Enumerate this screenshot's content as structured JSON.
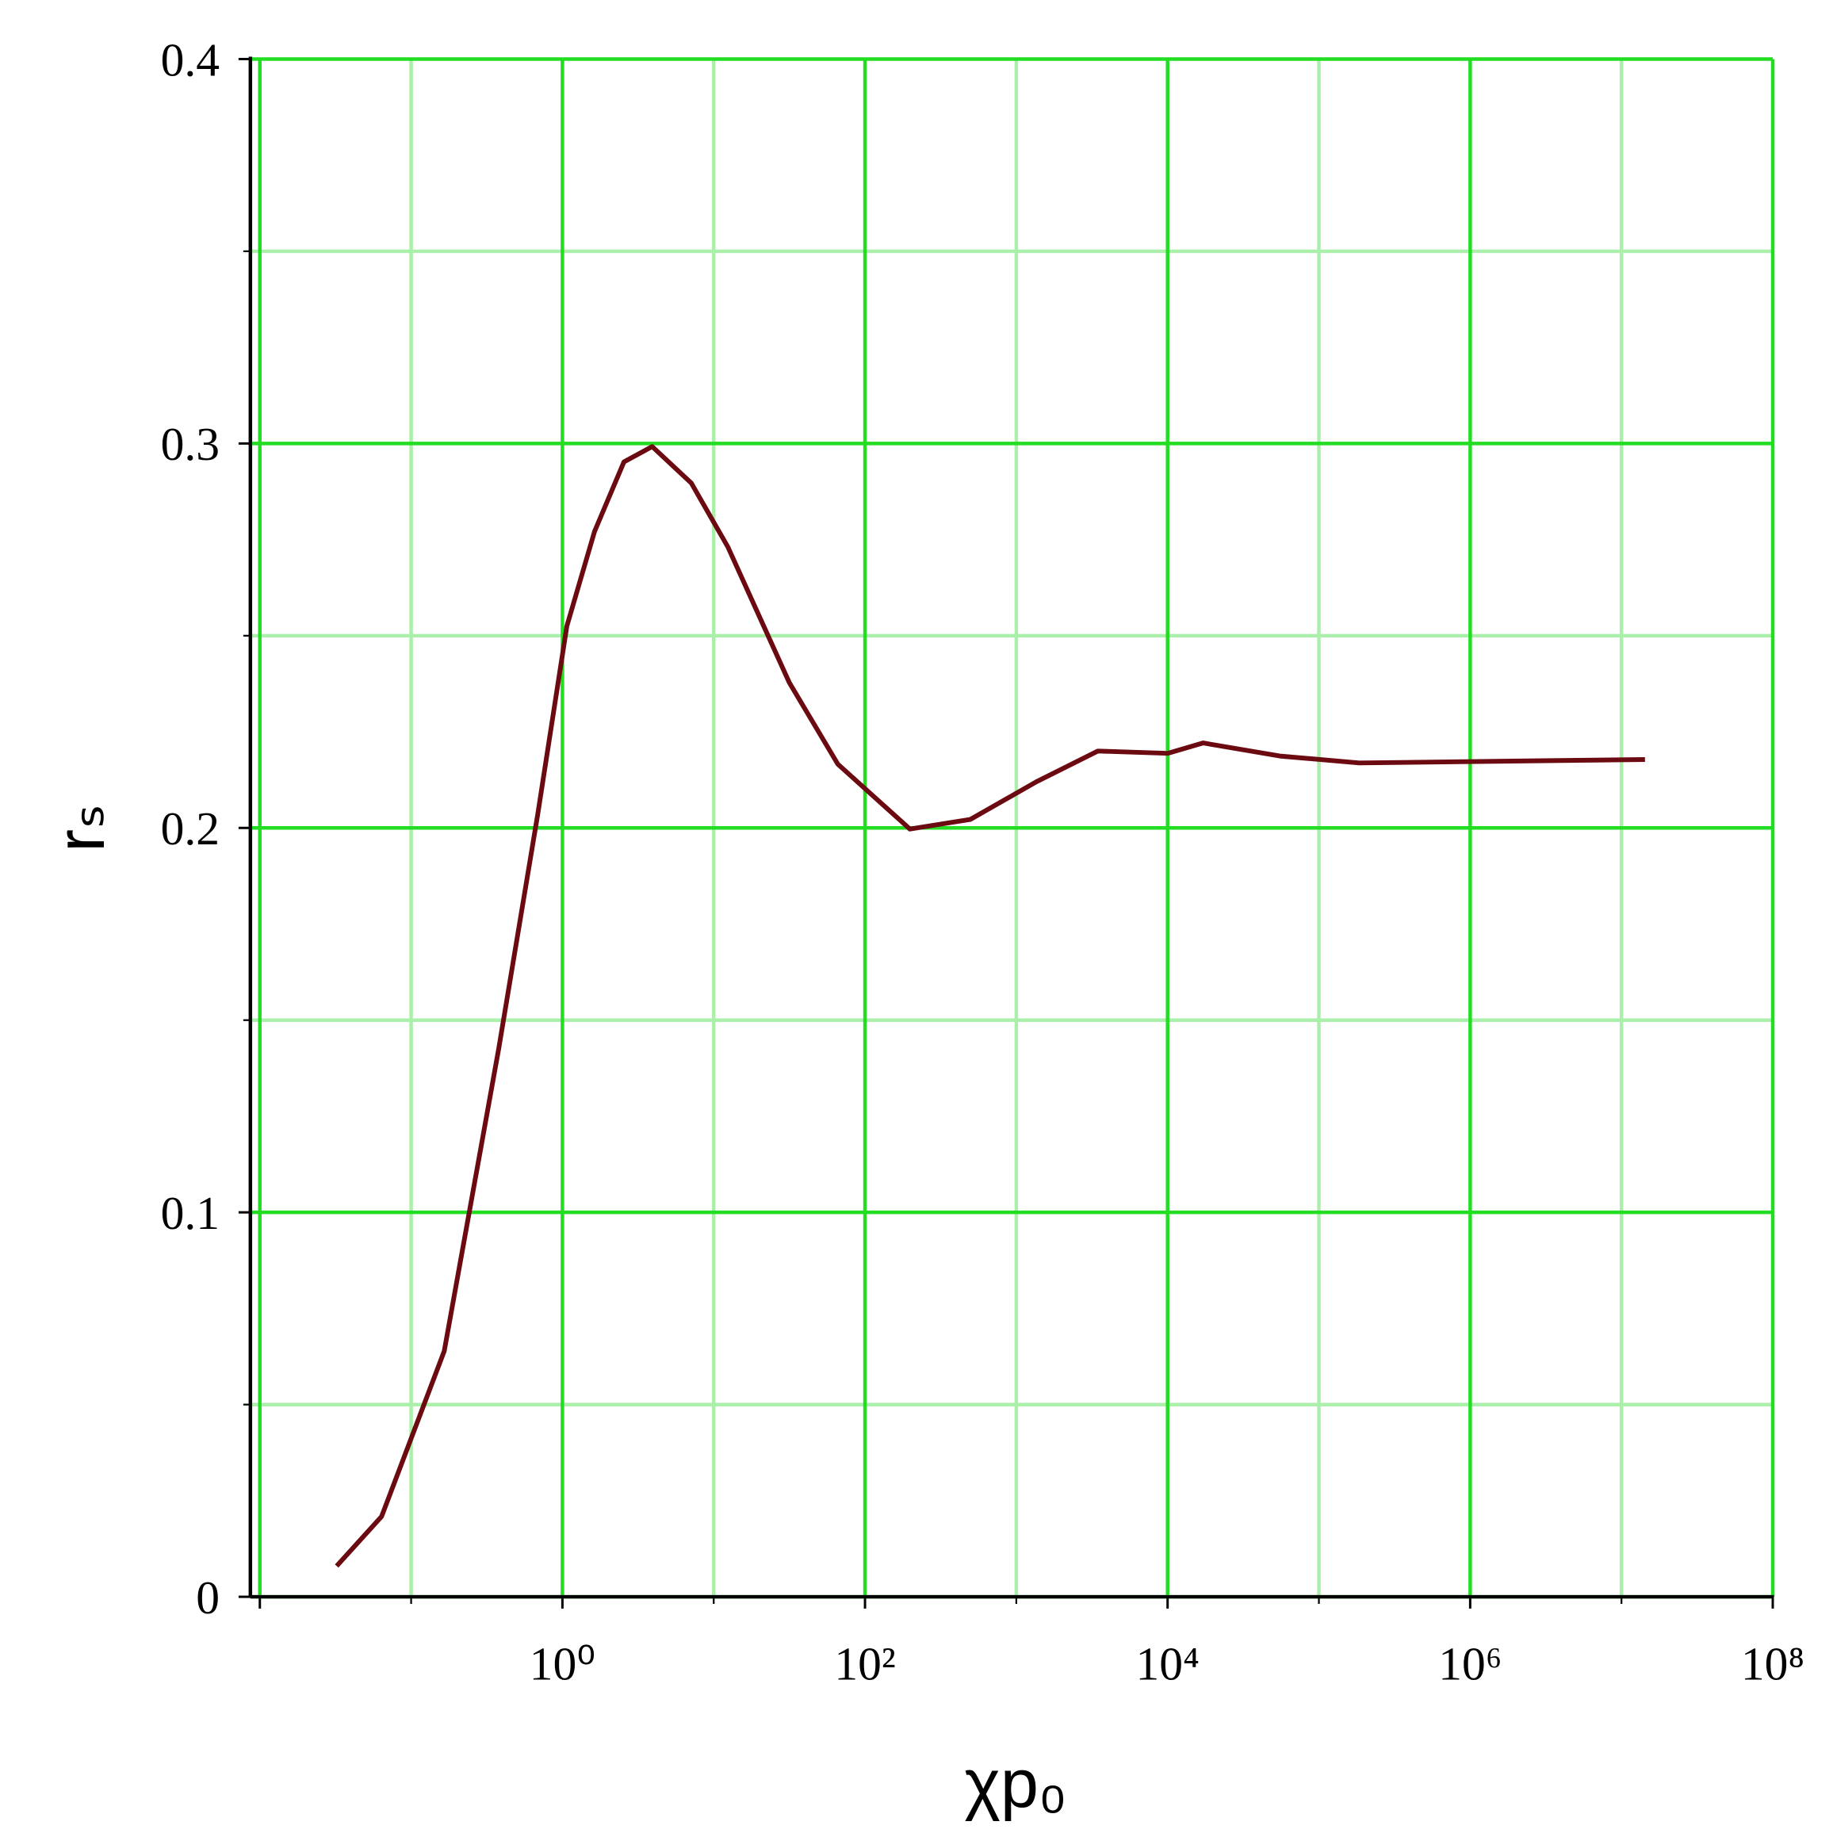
{
  "chart_data": {
    "type": "line",
    "x_label": "χp₀",
    "y_label": "rₛ",
    "xscale": "log",
    "xlim": [
      0.00866,
      100000000
    ],
    "ylim": [
      0,
      0.4
    ],
    "xticks": [
      {
        "value": 1,
        "label": "10⁰"
      },
      {
        "value": 100,
        "label": "10²"
      },
      {
        "value": 10000,
        "label": "10⁴"
      },
      {
        "value": 1000000,
        "label": "10⁶"
      },
      {
        "value": 100000000,
        "label": "10⁸"
      }
    ],
    "xgrid_major": [
      0.01,
      1,
      100,
      10000,
      1000000,
      100000000
    ],
    "xgrid_minor": [
      0.1,
      10,
      1000,
      100000,
      10000000
    ],
    "yticks": [
      0,
      0.1,
      0.2,
      0.3,
      0.4
    ],
    "ygrid_minor": [
      0.05,
      0.15,
      0.25,
      0.35
    ],
    "grid": true,
    "major_grid_color": "#22dd22",
    "minor_grid_color": "#aaf0aa",
    "series": [
      {
        "color": "#6b0a10",
        "x": [
          0.0322,
          0.0638,
          0.1655,
          0.379,
          0.686,
          1.07,
          1.63,
          2.55,
          3.92,
          7.11,
          12.4,
          31.6,
          66.1,
          198,
          496,
          1358,
          3460,
          10000,
          17150,
          55200,
          184500,
          14300000
        ],
        "values": [
          0.008,
          0.0209,
          0.0639,
          0.1425,
          0.2034,
          0.2525,
          0.2771,
          0.2952,
          0.2992,
          0.2897,
          0.2731,
          0.2378,
          0.2166,
          0.1997,
          0.2022,
          0.212,
          0.22,
          0.2194,
          0.2221,
          0.2187,
          0.2169,
          0.2178
        ]
      }
    ]
  }
}
